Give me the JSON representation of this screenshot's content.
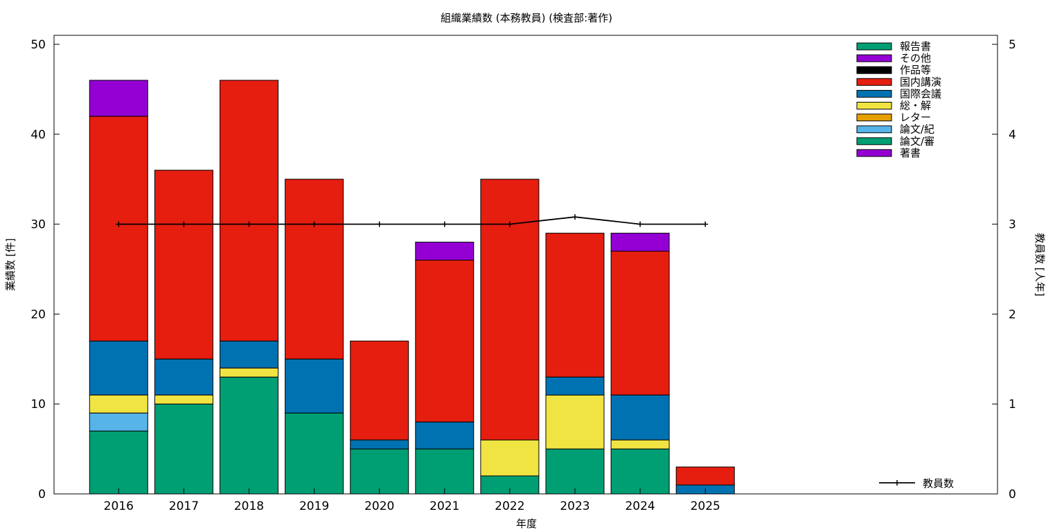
{
  "chart_data": {
    "type": "bar",
    "stacked": true,
    "title": "組織業績数 (本務教員) (検査部:著作)",
    "xlabel": "年度",
    "ylabel": "業績数 [件]",
    "y2label": "教員数 [人年]",
    "ylim": [
      0,
      51
    ],
    "y2lim": [
      0,
      5.1
    ],
    "yticks": [
      0,
      10,
      20,
      30,
      40,
      50
    ],
    "y2ticks": [
      0,
      1,
      2,
      3,
      4,
      5
    ],
    "grid": false,
    "legend_position": "top-right",
    "categories": [
      "2016",
      "2017",
      "2018",
      "2019",
      "2020",
      "2021",
      "2022",
      "2023",
      "2024",
      "2025"
    ],
    "series": [
      {
        "name": "著書",
        "color": "#9400d3",
        "values": [
          0,
          0,
          0,
          0,
          0,
          0,
          0,
          0,
          0,
          0
        ]
      },
      {
        "name": "論文/審",
        "color": "#009e73",
        "values": [
          7,
          10,
          13,
          9,
          5,
          5,
          2,
          5,
          5,
          0
        ]
      },
      {
        "name": "論文/紀",
        "color": "#56b4e9",
        "values": [
          2,
          0,
          0,
          0,
          0,
          0,
          0,
          0,
          0,
          0
        ]
      },
      {
        "name": "レター",
        "color": "#e69f00",
        "values": [
          0,
          0,
          0,
          0,
          0,
          0,
          0,
          0,
          0,
          0
        ]
      },
      {
        "name": "総・解",
        "color": "#f0e442",
        "values": [
          2,
          1,
          1,
          0,
          0,
          0,
          4,
          6,
          1,
          0
        ]
      },
      {
        "name": "国際会議",
        "color": "#0072b2",
        "values": [
          6,
          4,
          3,
          6,
          1,
          3,
          0,
          2,
          5,
          1
        ]
      },
      {
        "name": "国内講演",
        "color": "#e51e10",
        "values": [
          25,
          21,
          29,
          20,
          11,
          18,
          29,
          16,
          16,
          2
        ]
      },
      {
        "name": "作品等",
        "color": "#000000",
        "values": [
          0,
          0,
          0,
          0,
          0,
          0,
          0,
          0,
          0,
          0
        ]
      },
      {
        "name": "その他",
        "color": "#9400d3",
        "values": [
          4,
          0,
          0,
          0,
          0,
          2,
          0,
          0,
          2,
          0
        ]
      },
      {
        "name": "報告書",
        "color": "#009e73",
        "values": [
          0,
          0,
          0,
          0,
          0,
          0,
          0,
          0,
          0,
          0
        ]
      }
    ],
    "line_series": {
      "name": "教員数",
      "color": "#000000",
      "axis": "y2",
      "values": [
        3.0,
        3.0,
        3.0,
        3.0,
        3.0,
        3.0,
        3.0,
        3.08,
        3.0,
        3.0
      ]
    }
  }
}
